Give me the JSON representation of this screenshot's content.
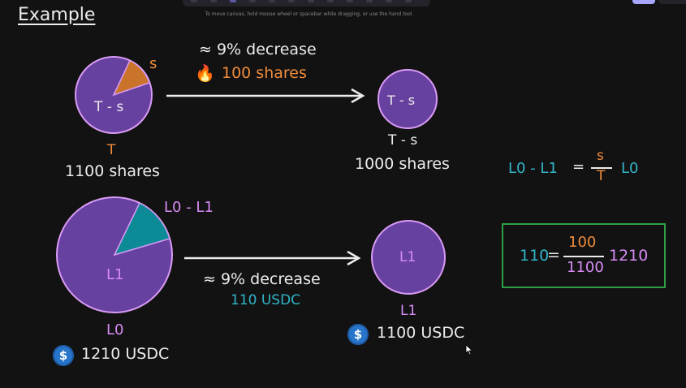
{
  "canvas_hint": "To move canvas, hold mouse wheel or spacebar while dragging, or use the hand tool",
  "title": "Example",
  "top_row": {
    "pie_label_slice": "s",
    "pie_label_rest": "T - s",
    "pie_caption_symbol": "T",
    "pie_caption_value": "1100 shares",
    "arrow_text_decrease": "≈ 9% decrease",
    "arrow_text_amount": "100 shares",
    "fire_icon_glyph": "🔥",
    "result_circle_label": "T - s",
    "result_caption_symbol": "T - s",
    "result_caption_value": "1000 shares"
  },
  "bottom_row": {
    "pie_label_slice": "L0 - L1",
    "pie_label_rest": "L1",
    "pie_caption_symbol": "L0",
    "pie_caption_value": "1210 USDC",
    "arrow_text_decrease": "≈ 9% decrease",
    "arrow_text_amount": "110 USDC",
    "result_circle_label": "L1",
    "result_caption_symbol": "L1",
    "result_caption_value": "1100 USDC",
    "usdc_glyph": "$"
  },
  "formula_general": {
    "lhs": "L0 - L1",
    "equals": "=",
    "numerator": "s",
    "denominator": "T",
    "rhs": "L0"
  },
  "formula_numeric": {
    "lhs": "110",
    "equals": "=",
    "numerator": "100",
    "denominator": "1100",
    "rhs": "1210"
  },
  "colors": {
    "background": "#121212",
    "pie_fill": "#6741a0",
    "pie_stroke": "#d99bf5",
    "slice_orange": "#c9742a",
    "slice_teal": "#0c8a96",
    "arrow": "#ececec",
    "box_border": "#2f9e44"
  }
}
